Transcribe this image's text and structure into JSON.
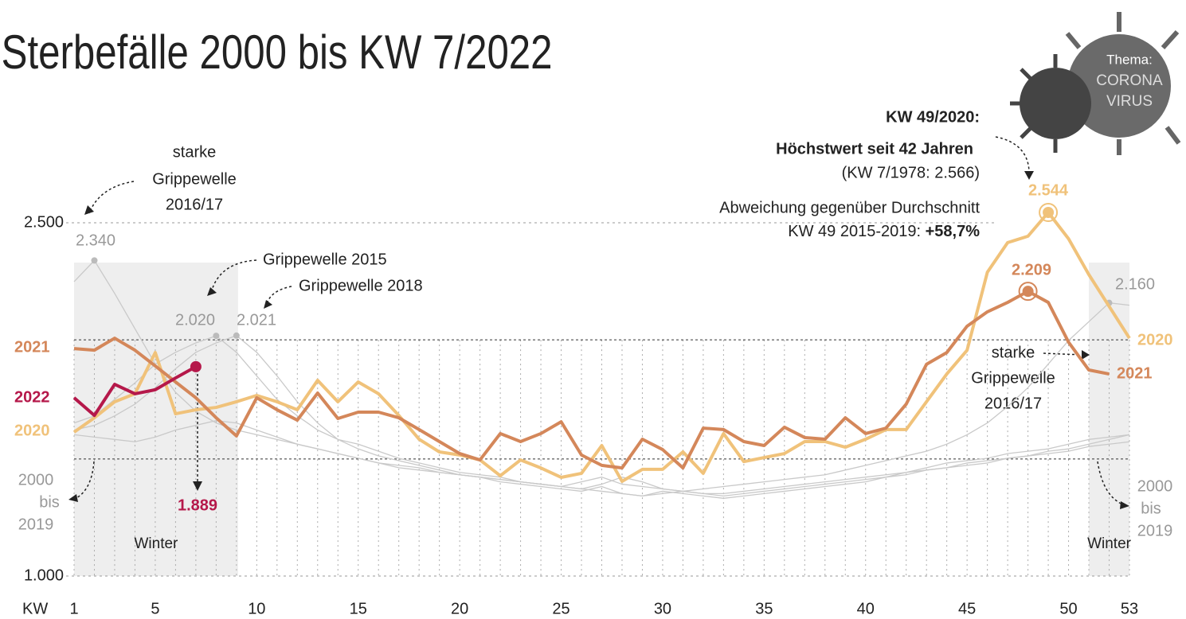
{
  "chart_data": {
    "type": "line",
    "title": "Sterbefälle 2000 bis KW 7/2022",
    "x_label": "KW",
    "x": [
      1,
      2,
      3,
      4,
      5,
      6,
      7,
      8,
      9,
      10,
      11,
      12,
      13,
      14,
      15,
      16,
      17,
      18,
      19,
      20,
      21,
      22,
      23,
      24,
      25,
      26,
      27,
      28,
      29,
      30,
      31,
      32,
      33,
      34,
      35,
      36,
      37,
      38,
      39,
      40,
      41,
      42,
      43,
      44,
      45,
      46,
      47,
      48,
      49,
      50,
      51,
      52,
      53
    ],
    "xlim": [
      1,
      53
    ],
    "xticks": [
      1,
      5,
      10,
      15,
      20,
      25,
      30,
      35,
      40,
      45,
      50,
      53
    ],
    "ylim": [
      950,
      2620
    ],
    "yticks": [
      {
        "value": 1000,
        "label": "1.000"
      },
      {
        "value": 2500,
        "label": "2.500"
      }
    ],
    "reference_lines": [
      2003,
      1497
    ],
    "shaded": [
      {
        "from": 1,
        "to": 9,
        "label": "Winter"
      },
      {
        "from": 51,
        "to": 53,
        "label": "Winter"
      }
    ],
    "gray_label": [
      "2000",
      "bis",
      "2019"
    ],
    "series": [
      {
        "color": "#c9c9c9",
        "peak": {
          "index": 1,
          "label": "2.340"
        },
        "values": [
          2250,
          2340,
          2200,
          2050,
          1900,
          1780,
          1700,
          1650,
          1620,
          1600,
          1580,
          1560,
          1540,
          1520,
          1500,
          1480,
          1470,
          1460,
          1440,
          1430,
          1420,
          1400,
          1390,
          1380,
          1370,
          1360,
          1380,
          1350,
          1340,
          1360,
          1350,
          1340,
          1330,
          1340,
          1350,
          1360,
          1370,
          1380,
          1390,
          1400,
          1420,
          1440,
          1460,
          1480,
          1490,
          1500,
          1520,
          1530,
          1540,
          1560,
          1580,
          1590,
          1600
        ]
      },
      {
        "color": "#c9c9c9",
        "peak": {
          "index": 7,
          "label": "2.020"
        },
        "values": [
          1650,
          1680,
          1750,
          1820,
          1900,
          1950,
          1990,
          2020,
          1950,
          1850,
          1750,
          1680,
          1620,
          1580,
          1560,
          1530,
          1500,
          1480,
          1460,
          1440,
          1430,
          1420,
          1400,
          1390,
          1380,
          1370,
          1390,
          1420,
          1400,
          1370,
          1360,
          1350,
          1340,
          1350,
          1360,
          1370,
          1380,
          1390,
          1400,
          1410,
          1420,
          1430,
          1450,
          1460,
          1470,
          1480,
          1500,
          1510,
          1530,
          1540,
          1560,
          1580,
          1600
        ]
      },
      {
        "color": "#c9c9c9",
        "peak": {
          "index": 8,
          "label": "2.021"
        },
        "values": [
          1620,
          1640,
          1680,
          1730,
          1800,
          1880,
          1950,
          1990,
          2021,
          1950,
          1850,
          1740,
          1650,
          1580,
          1540,
          1510,
          1490,
          1470,
          1450,
          1430,
          1420,
          1410,
          1400,
          1390,
          1380,
          1400,
          1420,
          1390,
          1380,
          1370,
          1360,
          1350,
          1350,
          1360,
          1370,
          1380,
          1390,
          1400,
          1410,
          1420,
          1430,
          1440,
          1450,
          1460,
          1480,
          1490,
          1500,
          1510,
          1520,
          1530,
          1550,
          1560,
          1570
        ]
      },
      {
        "color": "#c9c9c9",
        "peak": {
          "index": 51,
          "label": "2.160"
        },
        "values": [
          1600,
          1590,
          1580,
          1570,
          1590,
          1620,
          1640,
          1660,
          1650,
          1620,
          1590,
          1560,
          1540,
          1520,
          1500,
          1480,
          1460,
          1450,
          1440,
          1430,
          1420,
          1410,
          1400,
          1390,
          1380,
          1370,
          1360,
          1350,
          1340,
          1350,
          1360,
          1370,
          1380,
          1390,
          1400,
          1410,
          1420,
          1430,
          1450,
          1470,
          1490,
          1510,
          1530,
          1560,
          1600,
          1650,
          1720,
          1800,
          1900,
          2000,
          2080,
          2160,
          2150
        ]
      },
      {
        "name": "2020",
        "color": "#f0c27a",
        "peak": {
          "index": 48,
          "label": "2.544"
        },
        "values": [
          1611,
          1672,
          1740,
          1774,
          1949,
          1689,
          1706,
          1716,
          1740,
          1767,
          1740,
          1706,
          1831,
          1740,
          1824,
          1774,
          1682,
          1581,
          1527,
          1514,
          1493,
          1426,
          1493,
          1459,
          1419,
          1436,
          1554,
          1402,
          1453,
          1453,
          1527,
          1436,
          1605,
          1486,
          1503,
          1520,
          1571,
          1571,
          1547,
          1581,
          1622,
          1622,
          1740,
          1858,
          1959,
          2290,
          2416,
          2443,
          2544,
          2432,
          2280,
          2145,
          2010
        ]
      },
      {
        "name": "2021",
        "color": "#d4875a",
        "peak": {
          "index": 47,
          "label": "2.209"
        },
        "values": [
          1966,
          1959,
          2010,
          1959,
          1892,
          1824,
          1757,
          1672,
          1595,
          1757,
          1706,
          1662,
          1777,
          1669,
          1696,
          1696,
          1672,
          1622,
          1571,
          1520,
          1493,
          1605,
          1571,
          1605,
          1655,
          1514,
          1470,
          1459,
          1581,
          1537,
          1459,
          1628,
          1622,
          1571,
          1554,
          1632,
          1588,
          1581,
          1672,
          1605,
          1628,
          1730,
          1899,
          1949,
          2061,
          2122,
          2162,
          2209,
          2162,
          1993,
          1875,
          1858,
          null
        ]
      },
      {
        "name": "2022",
        "color": "#b5184a",
        "peak": {
          "index": 6,
          "label": "1.889"
        },
        "values": [
          1757,
          1682,
          1814,
          1774,
          1791,
          1841,
          1889,
          null,
          null,
          null,
          null,
          null,
          null,
          null,
          null,
          null,
          null,
          null,
          null,
          null,
          null,
          null,
          null,
          null,
          null,
          null,
          null,
          null,
          null,
          null,
          null,
          null,
          null,
          null,
          null,
          null,
          null,
          null,
          null,
          null,
          null,
          null,
          null,
          null,
          null,
          null,
          null,
          null,
          null,
          null,
          null,
          null,
          null
        ]
      }
    ],
    "annotations": {
      "flu_2016_left": [
        "starke",
        "Grippewelle",
        "2016/17"
      ],
      "flu_2015": "Grippewelle 2015",
      "flu_2018": "Grippewelle 2018",
      "record_head": "KW 49/2020:",
      "record_sub": "Höchstwert seit 42 Jahren",
      "record_ref": "(KW 7/1978: 2.566)",
      "deviation": "Abweichung gegenüber Durchschnitt",
      "deviation_kw": "KW 49 2015-2019: ",
      "deviation_value": "+58,7%",
      "flu_2016_right": [
        "starke",
        "Grippewelle",
        "2016/17"
      ]
    },
    "badge": [
      "Thema:",
      "CORONA",
      "VIRUS"
    ]
  }
}
